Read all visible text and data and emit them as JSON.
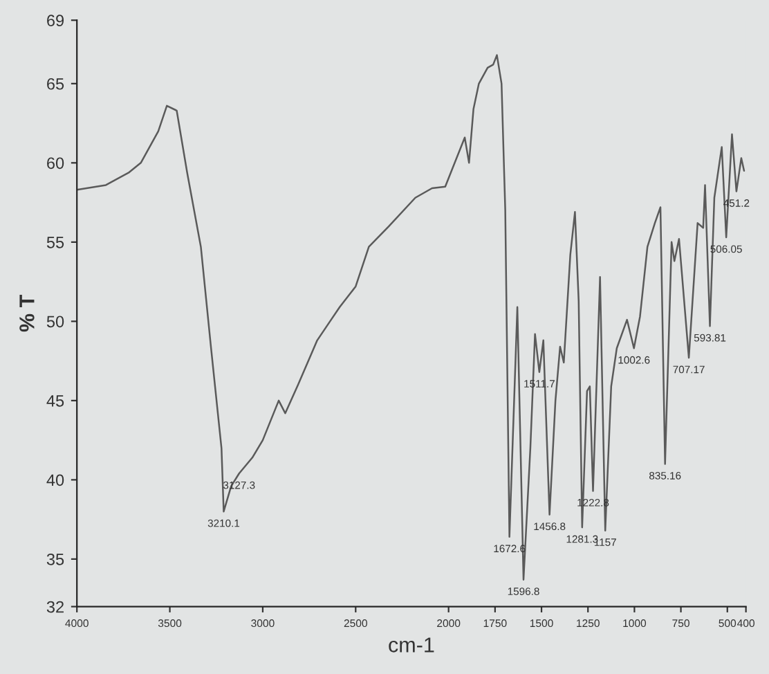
{
  "chart_data": {
    "type": "line",
    "xlabel": "cm-1",
    "ylabel": "% T",
    "xlim": [
      4000,
      400
    ],
    "xticks": [
      4000,
      3500,
      3000,
      2500,
      2000,
      1750,
      1500,
      1250,
      1000,
      750,
      500,
      400
    ],
    "ylim": [
      32,
      69
    ],
    "yticks": [
      32,
      35,
      40,
      45,
      50,
      55,
      60,
      65,
      69
    ],
    "grid": false,
    "legend": false,
    "marker": "none",
    "line_style": "solid",
    "series": [
      {
        "color": "#5a5a5a",
        "x": [
          4000,
          3844,
          3719,
          3656,
          3562,
          3516,
          3463,
          3407,
          3333,
          3278,
          3222,
          3210.1,
          3170,
          3127.3,
          3056,
          3000,
          2914,
          2879,
          2810,
          2707,
          2638,
          2586,
          2500,
          2429,
          2321,
          2179,
          2089,
          2018,
          1913,
          1890,
          1866,
          1837,
          1790,
          1760,
          1740,
          1715,
          1695,
          1672.6,
          1630,
          1596.8,
          1560,
          1535,
          1511.7,
          1490,
          1456.8,
          1425,
          1400,
          1380,
          1345,
          1320,
          1300,
          1281.3,
          1255,
          1240,
          1222.8,
          1185,
          1157,
          1125,
          1095,
          1040,
          1002.6,
          970,
          930,
          890,
          860,
          835.16,
          800,
          785,
          760,
          707.17,
          660,
          630,
          620,
          593.81,
          570,
          530,
          506.05,
          475,
          451.2,
          425,
          410
        ],
        "values": [
          58.3,
          58.6,
          59.4,
          60,
          62,
          63.6,
          63.3,
          59.4,
          54.7,
          48.3,
          42,
          38,
          39.6,
          40.4,
          41.4,
          42.5,
          45,
          44.2,
          46,
          48.8,
          50,
          50.9,
          52.2,
          54.7,
          56,
          57.8,
          58.4,
          58.5,
          61.6,
          60,
          63.4,
          65,
          66,
          66.2,
          66.8,
          65,
          57,
          36.4,
          50.9,
          33.7,
          42,
          49.2,
          46.8,
          48.8,
          37.8,
          45,
          48.4,
          47.4,
          54.2,
          56.9,
          51.3,
          37,
          45.6,
          45.9,
          39.3,
          52.8,
          36.8,
          45.9,
          48.3,
          50.1,
          48.3,
          50.3,
          54.7,
          56.2,
          57.2,
          41,
          55,
          53.8,
          55.2,
          47.7,
          56.2,
          55.9,
          58.6,
          49.7,
          57.8,
          61,
          55.3,
          61.8,
          58.2,
          60.3,
          59.5
        ]
      }
    ],
    "annotations": [
      {
        "text": "3210.1",
        "x": 3210.1,
        "y": 38
      },
      {
        "text": "3127.3",
        "x": 3127.3,
        "y": 40.4
      },
      {
        "text": "1672.6",
        "x": 1672.6,
        "y": 36.4
      },
      {
        "text": "1596.8",
        "x": 1596.8,
        "y": 33.7
      },
      {
        "text": "1511.7",
        "x": 1511.7,
        "y": 46.8
      },
      {
        "text": "1456.8",
        "x": 1456.8,
        "y": 37.8
      },
      {
        "text": "1281.3",
        "x": 1281.3,
        "y": 37
      },
      {
        "text": "1222.8",
        "x": 1222.8,
        "y": 39.3
      },
      {
        "text": "1157",
        "x": 1157,
        "y": 36.8
      },
      {
        "text": "1002.6",
        "x": 1002.6,
        "y": 48.3
      },
      {
        "text": "835.16",
        "x": 835.16,
        "y": 41
      },
      {
        "text": "707.17",
        "x": 707.17,
        "y": 47.7
      },
      {
        "text": "593.81",
        "x": 593.81,
        "y": 49.7
      },
      {
        "text": "506.05",
        "x": 506.05,
        "y": 55.3
      },
      {
        "text": "451.2",
        "x": 451.2,
        "y": 58.2
      }
    ]
  }
}
